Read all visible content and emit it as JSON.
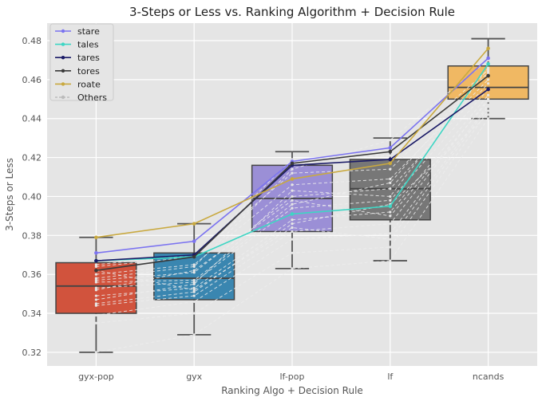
{
  "chart_data": {
    "type": "box+line",
    "title": "3-Steps or Less vs. Ranking Algorithm + Decision Rule",
    "xlabel": "Ranking Algo + Decision Rule",
    "ylabel": "3-Steps or Less",
    "ylim": [
      0.313,
      0.489
    ],
    "yticks": [
      0.32,
      0.34,
      0.36,
      0.38,
      0.4,
      0.42,
      0.44,
      0.46,
      0.48
    ],
    "ytick_labels": [
      "0.32",
      "0.34",
      "0.36",
      "0.38",
      "0.40",
      "0.42",
      "0.44",
      "0.46",
      "0.48"
    ],
    "categories": [
      "gyx-pop",
      "gyx",
      "lf-pop",
      "lf",
      "ncands"
    ],
    "grid": true,
    "legend_position": "top-left",
    "boxes": [
      {
        "category": "gyx-pop",
        "whisker_low": 0.32,
        "q1": 0.34,
        "median": 0.354,
        "q3": 0.366,
        "whisker_high": 0.379,
        "color": "#d1533d"
      },
      {
        "category": "gyx",
        "whisker_low": 0.329,
        "q1": 0.347,
        "median": 0.358,
        "q3": 0.371,
        "whisker_high": 0.386,
        "color": "#3a86b0"
      },
      {
        "category": "lf-pop",
        "whisker_low": 0.363,
        "q1": 0.382,
        "median": 0.399,
        "q3": 0.416,
        "whisker_high": 0.423,
        "color": "#9b8fd6"
      },
      {
        "category": "lf",
        "whisker_low": 0.367,
        "q1": 0.388,
        "median": 0.404,
        "q3": 0.419,
        "whisker_high": 0.43,
        "color": "#777777"
      },
      {
        "category": "ncands",
        "whisker_low": 0.44,
        "q1": 0.45,
        "median": 0.456,
        "q3": 0.467,
        "whisker_high": 0.481,
        "color": "#f0b863"
      }
    ],
    "series": [
      {
        "name": "stare",
        "color": "#7b73f0",
        "values": [
          0.371,
          0.377,
          0.418,
          0.425,
          0.471
        ]
      },
      {
        "name": "tales",
        "color": "#3dd6c4",
        "values": [
          0.367,
          0.369,
          0.391,
          0.395,
          0.468
        ]
      },
      {
        "name": "tares",
        "color": "#1a1a66",
        "values": [
          0.367,
          0.37,
          0.416,
          0.419,
          0.455
        ]
      },
      {
        "name": "tores",
        "color": "#3a3a3a",
        "values": [
          0.362,
          0.369,
          0.417,
          0.423,
          0.462
        ]
      },
      {
        "name": "roate",
        "color": "#c9a93f",
        "values": [
          0.379,
          0.386,
          0.409,
          0.417,
          0.476
        ]
      }
    ],
    "others": {
      "name": "Others",
      "color": "#d9d9d9",
      "values": [
        [
          0.32,
          0.329,
          0.363,
          0.367,
          0.44
        ],
        [
          0.335,
          0.34,
          0.371,
          0.374,
          0.444
        ],
        [
          0.339,
          0.346,
          0.378,
          0.381,
          0.447
        ],
        [
          0.344,
          0.349,
          0.382,
          0.386,
          0.45
        ],
        [
          0.349,
          0.353,
          0.388,
          0.392,
          0.452
        ],
        [
          0.353,
          0.356,
          0.394,
          0.398,
          0.455
        ],
        [
          0.357,
          0.361,
          0.4,
          0.404,
          0.458
        ],
        [
          0.36,
          0.365,
          0.406,
          0.409,
          0.46
        ],
        [
          0.364,
          0.369,
          0.412,
          0.414,
          0.463
        ],
        [
          0.365,
          0.37,
          0.419,
          0.421,
          0.465
        ],
        [
          0.358,
          0.364,
          0.414,
          0.429,
          0.47
        ],
        [
          0.347,
          0.355,
          0.403,
          0.4,
          0.466
        ],
        [
          0.352,
          0.362,
          0.398,
          0.39,
          0.449
        ],
        [
          0.345,
          0.351,
          0.386,
          0.396,
          0.442
        ],
        [
          0.356,
          0.357,
          0.396,
          0.407,
          0.464
        ],
        [
          0.362,
          0.352,
          0.384,
          0.378,
          0.446
        ]
      ]
    }
  }
}
